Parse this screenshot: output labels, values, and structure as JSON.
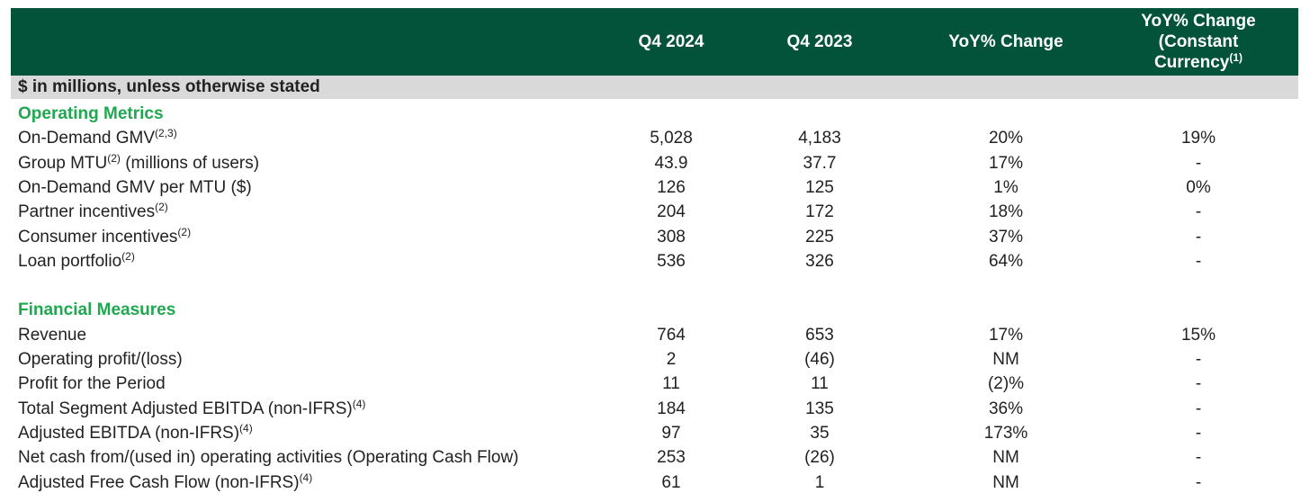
{
  "header": {
    "col1": "Q4 2024",
    "col2": "Q4 2023",
    "col3": "YoY% Change",
    "col4_line1": "YoY% Change",
    "col4_line2": "(Constant",
    "col4_line3": "Currency",
    "col4_sup": "(1)"
  },
  "subheader": "$ in millions, unless otherwise stated",
  "sections": [
    {
      "title": "Operating Metrics",
      "rows": [
        {
          "label": "On-Demand GMV",
          "sup": "(2,3)",
          "q4_2024": "5,028",
          "q4_2023": "4,183",
          "yoy": "20%",
          "yoy_cc": "19%"
        },
        {
          "label": "Group MTU",
          "sup": "(2)",
          "suffix": " (millions of users)",
          "q4_2024": "43.9",
          "q4_2023": "37.7",
          "yoy": "17%",
          "yoy_cc": "-"
        },
        {
          "label": "On-Demand GMV per MTU ($)",
          "sup": "",
          "q4_2024": "126",
          "q4_2023": "125",
          "yoy": "1%",
          "yoy_cc": "0%"
        },
        {
          "label": "Partner incentives",
          "sup": "(2)",
          "q4_2024": "204",
          "q4_2023": "172",
          "yoy": "18%",
          "yoy_cc": "-"
        },
        {
          "label": "Consumer incentives",
          "sup": "(2)",
          "q4_2024": "308",
          "q4_2023": "225",
          "yoy": "37%",
          "yoy_cc": "-"
        },
        {
          "label": "Loan portfolio",
          "sup": "(2)",
          "q4_2024": "536",
          "q4_2023": "326",
          "yoy": "64%",
          "yoy_cc": "-"
        }
      ]
    },
    {
      "title": "Financial Measures",
      "rows": [
        {
          "label": "Revenue",
          "sup": "",
          "q4_2024": "764",
          "q4_2023": "653",
          "yoy": "17%",
          "yoy_cc": "15%"
        },
        {
          "label": "Operating profit/(loss)",
          "sup": "",
          "q4_2024": "2",
          "q4_2023": "(46)",
          "yoy": "NM",
          "yoy_cc": "-"
        },
        {
          "label": "Profit for the Period",
          "sup": "",
          "q4_2024": "11",
          "q4_2023": "11",
          "yoy": "(2)%",
          "yoy_cc": "-"
        },
        {
          "label": "Total Segment Adjusted EBITDA (non-IFRS)",
          "sup": "(4)",
          "q4_2024": "184",
          "q4_2023": "135",
          "yoy": "36%",
          "yoy_cc": "-"
        },
        {
          "label": "Adjusted EBITDA (non-IFRS)",
          "sup": "(4)",
          "q4_2024": "97",
          "q4_2023": "35",
          "yoy": "173%",
          "yoy_cc": "-"
        },
        {
          "label": "Net cash from/(used in) operating activities (Operating Cash Flow)",
          "sup": "",
          "q4_2024": "253",
          "q4_2023": "(26)",
          "yoy": "NM",
          "yoy_cc": "-"
        },
        {
          "label": "Adjusted Free Cash Flow (non-IFRS)",
          "sup": "(4)",
          "q4_2024": "61",
          "q4_2023": "1",
          "yoy": "NM",
          "yoy_cc": "-"
        }
      ]
    }
  ]
}
